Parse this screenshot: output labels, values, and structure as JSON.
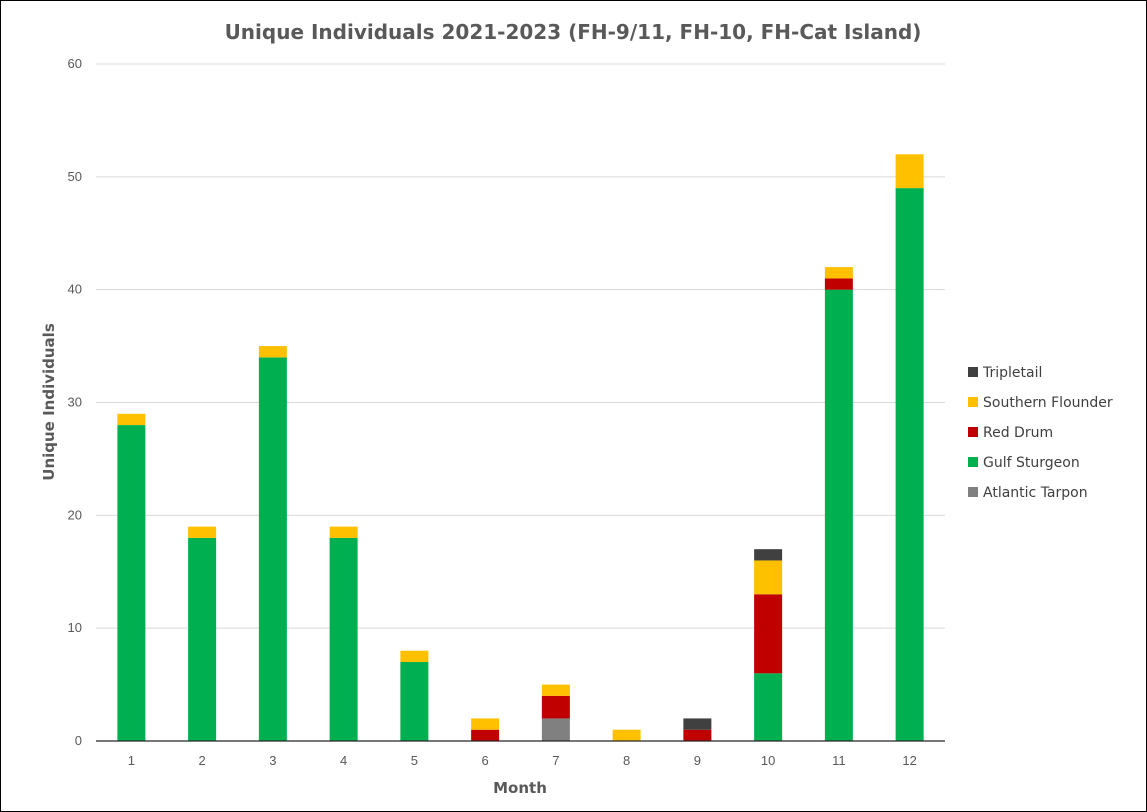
{
  "chart_data": {
    "type": "bar",
    "stacked": true,
    "title": "Unique Individuals 2021-2023 (FH-9/11, FH-10, FH-Cat Island)",
    "xlabel": "Month",
    "ylabel": "Unique Individuals",
    "categories": [
      "1",
      "2",
      "3",
      "4",
      "5",
      "6",
      "7",
      "8",
      "9",
      "10",
      "11",
      "12"
    ],
    "ylim": [
      0,
      60
    ],
    "yticks": [
      "0",
      "10",
      "20",
      "30",
      "40",
      "50",
      "60"
    ],
    "grid": true,
    "legend_position": "right",
    "series": [
      {
        "name": "Atlantic Tarpon",
        "color": "#808080",
        "values": [
          0,
          0,
          0,
          0,
          0,
          0,
          2,
          0,
          0,
          0,
          0,
          0
        ]
      },
      {
        "name": "Gulf Sturgeon",
        "color": "#00b050",
        "values": [
          28,
          18,
          34,
          18,
          7,
          0,
          0,
          0,
          0,
          6,
          40,
          49
        ]
      },
      {
        "name": "Red Drum",
        "color": "#c00000",
        "values": [
          0,
          0,
          0,
          0,
          0,
          1,
          2,
          0,
          1,
          7,
          1,
          0
        ]
      },
      {
        "name": "Southern Flounder",
        "color": "#ffc000",
        "values": [
          1,
          1,
          1,
          1,
          1,
          1,
          1,
          1,
          0,
          3,
          1,
          3
        ]
      },
      {
        "name": "Tripletail",
        "color": "#404040",
        "values": [
          0,
          0,
          0,
          0,
          0,
          0,
          0,
          0,
          1,
          1,
          0,
          0
        ]
      }
    ]
  }
}
